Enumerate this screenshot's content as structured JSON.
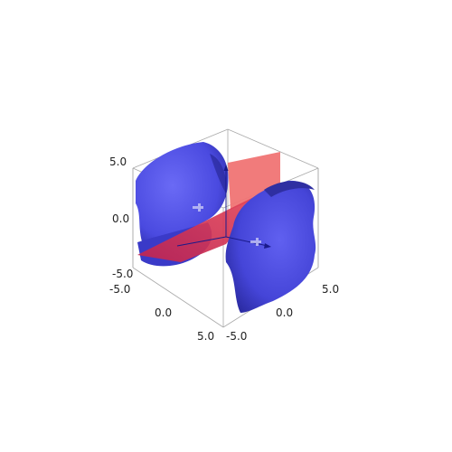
{
  "plot": {
    "type": "3d-implicit-surface",
    "axes": {
      "z": {
        "ticks": [
          "5.0",
          "0.0",
          "-5.0"
        ]
      },
      "x": {
        "ticks": [
          "-5.0",
          "0.0",
          "5.0"
        ]
      },
      "y": {
        "ticks": [
          "-5.0",
          "0.0",
          "5.0"
        ]
      }
    },
    "colors": {
      "surface": "#4a4ae0",
      "surface_dark": "#2b2ba8",
      "plane": "#e0404f",
      "plane_light": "#f07474",
      "box": "#a9a9a9",
      "arrow": "#1a1a8a",
      "tick_text": "#222222"
    },
    "elements": [
      "blue-saddle-surface",
      "red-plane",
      "bounding-box",
      "axis-arrows"
    ]
  }
}
